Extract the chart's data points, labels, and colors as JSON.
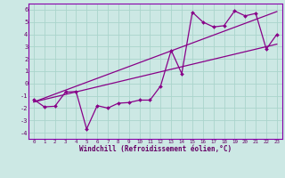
{
  "xlabel": "Windchill (Refroidissement éolien,°C)",
  "bg_color": "#cce8e4",
  "grid_color": "#aad4cc",
  "line_color": "#880088",
  "spine_color": "#8800aa",
  "tick_color": "#660066",
  "xlim": [
    -0.5,
    23.5
  ],
  "ylim": [
    -4.5,
    6.5
  ],
  "yticks": [
    -4,
    -3,
    -2,
    -1,
    0,
    1,
    2,
    3,
    4,
    5,
    6
  ],
  "xticks": [
    0,
    1,
    2,
    3,
    4,
    5,
    6,
    7,
    8,
    9,
    10,
    11,
    12,
    13,
    14,
    15,
    16,
    17,
    18,
    19,
    20,
    21,
    22,
    23
  ],
  "data_x": [
    0,
    1,
    2,
    3,
    4,
    5,
    6,
    7,
    8,
    9,
    10,
    11,
    12,
    13,
    14,
    15,
    16,
    17,
    18,
    19,
    20,
    21,
    22,
    23
  ],
  "data_y": [
    -1.3,
    -1.9,
    -1.85,
    -0.7,
    -0.65,
    -3.7,
    -1.8,
    -2.0,
    -1.6,
    -1.55,
    -1.35,
    -1.35,
    -0.2,
    2.7,
    0.8,
    5.8,
    5.0,
    4.6,
    4.7,
    5.9,
    5.5,
    5.7,
    2.8,
    4.0
  ],
  "trend1_x": [
    0,
    23
  ],
  "trend1_y": [
    -1.5,
    3.2
  ],
  "trend2_x": [
    0,
    23
  ],
  "trend2_y": [
    -1.5,
    5.85
  ]
}
